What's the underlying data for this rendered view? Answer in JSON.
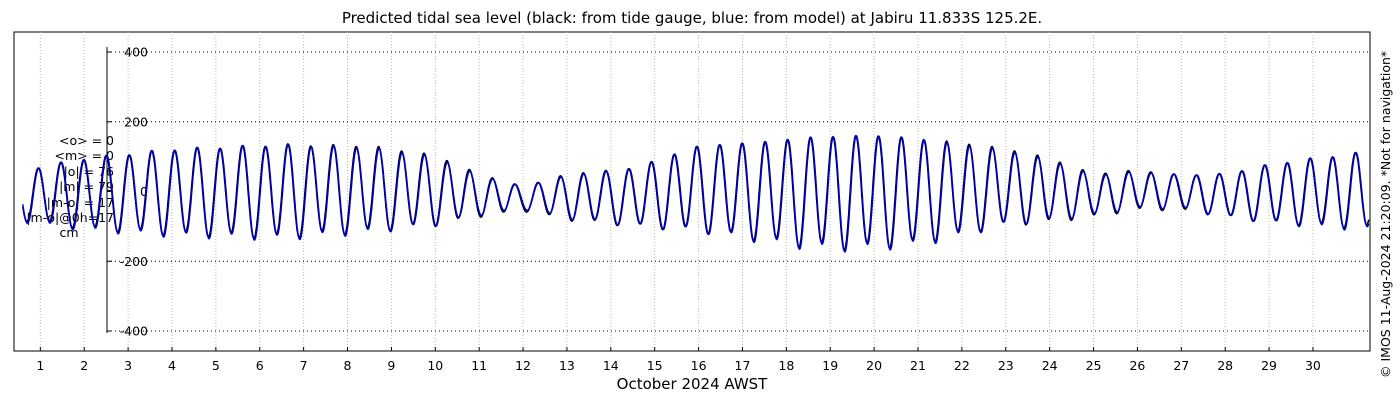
{
  "chart_data": {
    "type": "line",
    "title": "Predicted tidal sea level (black: from tide gauge, blue: from model) at Jabiru 11.833S 125.2E.",
    "xlabel": "October 2024 AWST",
    "ylabel": "",
    "x_ticks": [
      "1",
      "2",
      "3",
      "4",
      "5",
      "6",
      "7",
      "8",
      "9",
      "10",
      "11",
      "12",
      "13",
      "14",
      "15",
      "16",
      "17",
      "18",
      "19",
      "20",
      "21",
      "22",
      "23",
      "24",
      "25",
      "26",
      "27",
      "28",
      "29",
      "30"
    ],
    "y_ticks": [
      "400",
      "200",
      "0",
      "-200",
      "-400"
    ],
    "ylim": [
      -400,
      400
    ],
    "xlim": [
      0.4,
      31.3
    ],
    "grid": true,
    "series": [
      {
        "color": "#000000",
        "tidal_envelope": {
          "day": [
            0.5,
            2,
            4,
            6.5,
            8.5,
            10,
            11,
            12,
            13,
            14.5,
            16,
            17.5,
            18.5,
            19.5,
            20.2,
            21,
            22,
            23,
            24,
            25,
            26,
            27,
            28,
            29,
            30,
            31.2
          ],
          "high": [
            70,
            110,
            140,
            155,
            150,
            120,
            60,
            20,
            60,
            80,
            150,
            165,
            180,
            185,
            185,
            175,
            160,
            140,
            110,
            60,
            70,
            55,
            60,
            90,
            110,
            130
          ],
          "low": [
            -90,
            -120,
            -140,
            -150,
            -130,
            -110,
            -80,
            -60,
            -90,
            -110,
            -130,
            -160,
            -180,
            -185,
            -180,
            -170,
            -140,
            -110,
            -100,
            -80,
            -60,
            -60,
            -80,
            -100,
            -110,
            -120
          ]
        }
      },
      {
        "color": "#0000cc",
        "tidal_envelope": {
          "day": [
            0.5,
            2,
            4,
            6.5,
            8.5,
            10,
            11,
            12,
            13,
            14.5,
            16,
            17.5,
            18.5,
            19.5,
            20.2,
            21,
            22,
            23,
            24,
            25,
            26,
            27,
            28,
            29,
            30,
            31.2
          ],
          "high": [
            70,
            110,
            140,
            155,
            145,
            115,
            55,
            20,
            55,
            80,
            150,
            165,
            180,
            185,
            185,
            175,
            155,
            135,
            105,
            55,
            65,
            55,
            60,
            90,
            110,
            130
          ],
          "low": [
            -95,
            -125,
            -145,
            -155,
            -135,
            -110,
            -75,
            -55,
            -85,
            -110,
            -130,
            -165,
            -185,
            -190,
            -185,
            -175,
            -145,
            -110,
            -95,
            -75,
            -55,
            -55,
            -80,
            -100,
            -115,
            -125
          ]
        }
      }
    ],
    "stats": [
      "<o> = 0",
      "<m> = 0",
      "|o| = 76",
      "|m| = 79",
      "|m-o| = 17",
      "|m-o|@0h=17",
      "cm"
    ],
    "copyright": "© IMOS 11-Aug-2024 21:20:09. *Not for navigation*"
  }
}
